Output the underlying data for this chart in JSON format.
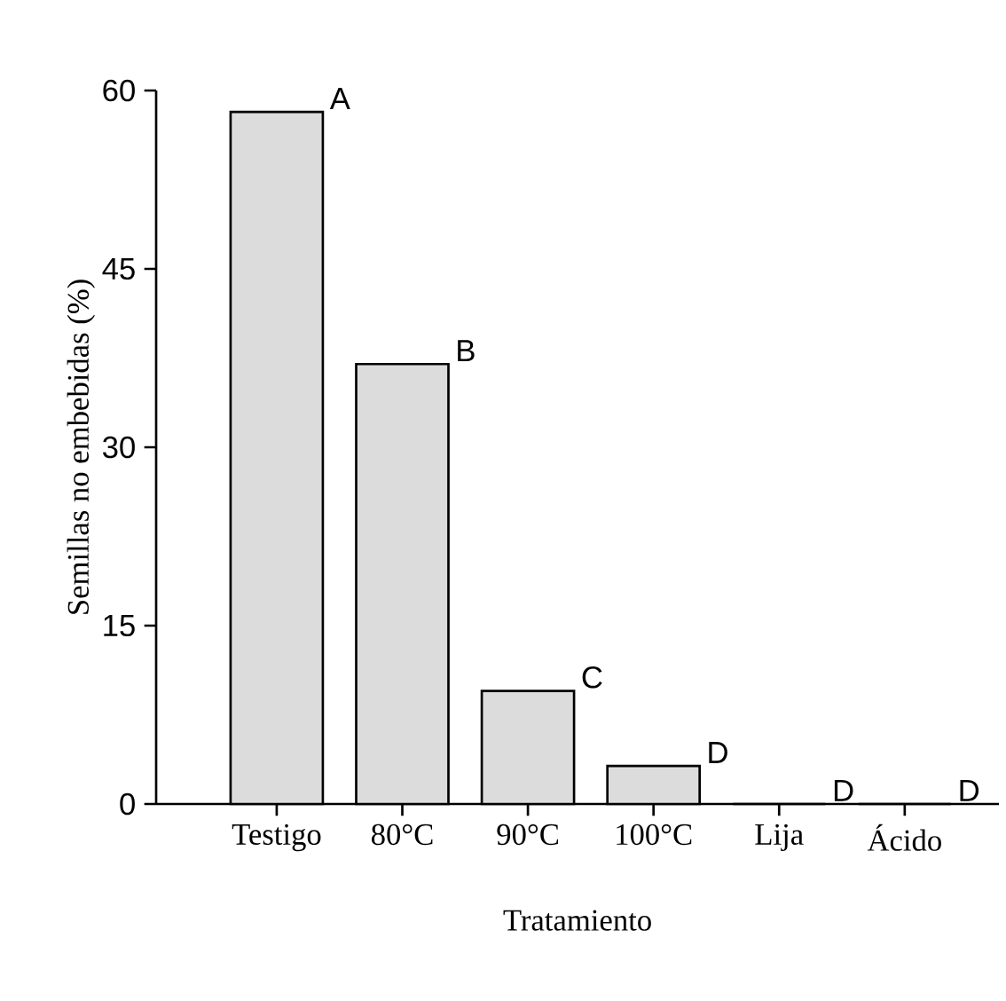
{
  "chart_data": {
    "type": "bar",
    "xlabel": "Tratamiento",
    "ylabel": "Semillas no embebidas (%)",
    "categories": [
      "Testigo",
      "80°C",
      "90°C",
      "100°C",
      "Lija",
      "Ácido"
    ],
    "values": [
      58.2,
      37.0,
      9.5,
      3.2,
      0,
      0
    ],
    "color": "#dcdcdc",
    "ylim": [
      0,
      60
    ],
    "yticks": [
      0,
      15,
      30,
      45,
      60
    ],
    "annotations": [
      {
        "text": "A",
        "x": "Testigo",
        "y": 58.2
      },
      {
        "text": "B",
        "x": "80°C",
        "y": 37.0
      },
      {
        "text": "C",
        "x": "90°C",
        "y": 9.5
      },
      {
        "text": "D",
        "x": "100°C",
        "y": 3.2
      },
      {
        "text": "D",
        "x": "Lija",
        "y": 0
      },
      {
        "text": "D",
        "x": "Ácido",
        "y": 0
      }
    ]
  }
}
